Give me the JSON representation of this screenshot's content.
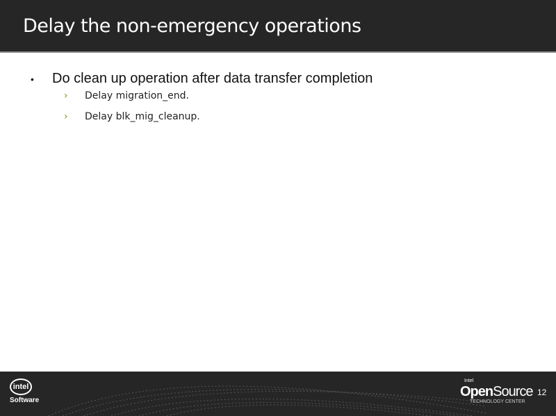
{
  "slide": {
    "title": "Delay the non-emergency operations",
    "bullets": [
      {
        "text": "Do clean up operation after data transfer completion",
        "sub": [
          "Delay migration_end.",
          "Delay blk_mig_cleanup."
        ]
      }
    ],
    "bullet_glyph": "•",
    "sub_glyph": "›"
  },
  "footer": {
    "intel_logo": "intel",
    "intel_sub": "Software",
    "opensource_small": "Intel",
    "opensource_open": "Open",
    "opensource_source": "Source",
    "opensource_sub": "TECHNOLOGY CENTER",
    "page_number": "12",
    "colors": {
      "bar": "#262626",
      "accent": "#7a9a20"
    }
  }
}
